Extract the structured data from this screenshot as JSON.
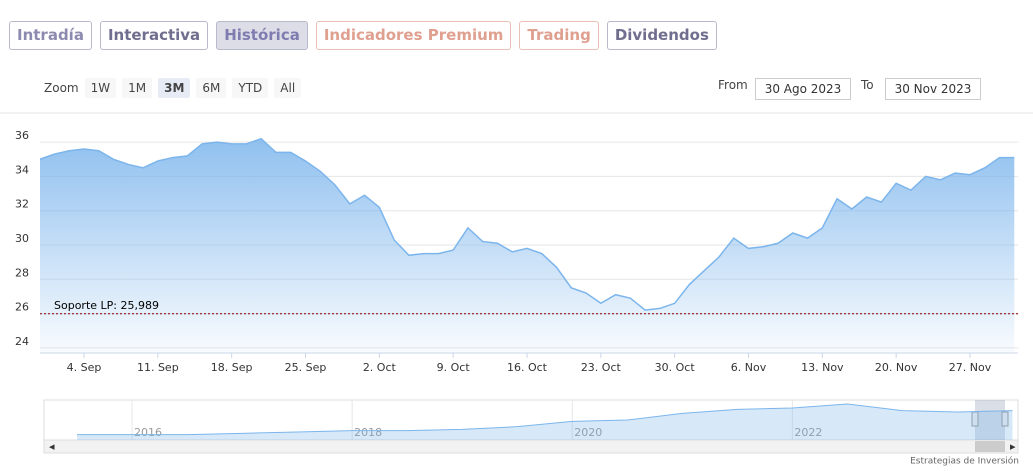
{
  "tabs": [
    "Intradía",
    "Interactiva",
    "Histórica",
    "Indicadores Premium",
    "Trading",
    "Dividendos"
  ],
  "zoom": {
    "label": "Zoom",
    "buttons": [
      "1W",
      "1M",
      "3M",
      "6M",
      "YTD",
      "All"
    ]
  },
  "range": {
    "from_label": "From",
    "from": "30 Ago 2023",
    "to_label": "To",
    "to": "30 Nov 2023"
  },
  "chart_data": {
    "type": "area",
    "categories": [
      null,
      null,
      null,
      "4. Sep",
      null,
      null,
      null,
      null,
      "11. Sep",
      null,
      null,
      null,
      null,
      "18. Sep",
      null,
      null,
      null,
      null,
      "25. Sep",
      null,
      null,
      null,
      null,
      "2. Oct",
      null,
      null,
      null,
      null,
      "9. Oct",
      null,
      null,
      null,
      null,
      "16. Oct",
      null,
      null,
      null,
      null,
      "23. Oct",
      null,
      null,
      null,
      null,
      "30. Oct",
      null,
      null,
      null,
      null,
      "6. Nov",
      null,
      null,
      null,
      null,
      "13. Nov",
      null,
      null,
      null,
      null,
      "20. Nov",
      null,
      null,
      null,
      null,
      "27. Nov",
      null,
      null,
      null
    ],
    "series": [
      {
        "color": "#7cb5ec",
        "values": [
          35.0,
          35.3,
          35.5,
          35.6,
          35.5,
          35.0,
          34.7,
          34.5,
          34.9,
          35.1,
          35.2,
          35.9,
          36.0,
          35.9,
          35.9,
          36.2,
          35.4,
          35.4,
          34.9,
          34.3,
          33.5,
          32.4,
          32.9,
          32.2,
          30.3,
          29.4,
          29.5,
          29.5,
          29.7,
          31.0,
          30.2,
          30.1,
          29.6,
          29.8,
          29.5,
          28.7,
          27.5,
          27.2,
          26.6,
          27.1,
          26.9,
          26.2,
          26.3,
          26.6,
          27.7,
          28.5,
          29.3,
          30.4,
          29.8,
          29.9,
          30.1,
          30.7,
          30.4,
          31.0,
          32.7,
          32.1,
          32.8,
          32.5,
          33.6,
          33.2,
          34.0,
          33.8,
          34.2,
          34.1,
          34.5,
          35.1,
          35.1
        ]
      }
    ],
    "ylim": [
      23.7,
      37.7
    ],
    "yticks": [
      24,
      26,
      28,
      30,
      32,
      34,
      36
    ],
    "grid": true,
    "support": {
      "value": 25.989,
      "label": "Soporte LP: 25,989",
      "color": "#8b0000"
    }
  },
  "navigator": {
    "x": [
      2015.5,
      2016,
      2016.5,
      2017,
      2017.5,
      2018,
      2018.5,
      2019,
      2019.5,
      2020,
      2020.5,
      2021,
      2021.5,
      2022,
      2022.5,
      2023,
      2023.5,
      2024
    ],
    "values": [
      14,
      14,
      14,
      15,
      16,
      17,
      17,
      18,
      20,
      24,
      25,
      30,
      33,
      34,
      37,
      32,
      31,
      32
    ],
    "xlim": [
      2015.2,
      2024.05
    ],
    "ylim": [
      10,
      40
    ],
    "xticks": [
      2016,
      2018,
      2020,
      2022
    ]
  },
  "credit": "Estrategias de Inversión"
}
